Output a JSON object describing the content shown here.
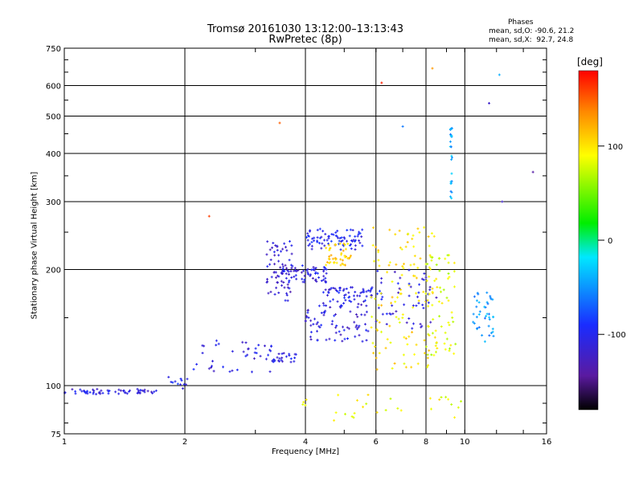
{
  "chart_data": {
    "type": "scatter",
    "title": "Tromsø 20161030 13:12:00–13:13:43",
    "subtitle": "RwPretec (8p)",
    "phase_header": {
      "title": "Phases",
      "line_o": "mean, sd,O: -90.6, 21.2",
      "line_x": "mean, sd,X:  92.7, 24.8"
    },
    "xlabel": "Frequency [MHz]",
    "ylabel": "Stationary phase Virtual Height [km]",
    "x_scale": "log",
    "y_scale": "log",
    "xlim": [
      1,
      16
    ],
    "ylim": [
      75,
      750
    ],
    "x_ticks": [
      1,
      2,
      4,
      6,
      8,
      10,
      16
    ],
    "y_ticks": [
      75,
      100,
      200,
      300,
      400,
      500,
      600,
      750
    ],
    "grid": true,
    "colorbar": {
      "label": "[deg]",
      "ticks": [
        100,
        0,
        -100
      ],
      "range": [
        -180,
        180
      ],
      "colormap": "rainbow (black-purple-blue-cyan-green-yellow-orange-red)"
    },
    "trace_groups": [
      {
        "x": [
          1.0,
          1.7
        ],
        "y": [
          95,
          98
        ],
        "phase": -110,
        "n": 60
      },
      {
        "x": [
          1.75,
          2.05
        ],
        "y": [
          98,
          108
        ],
        "phase": -100,
        "n": 12
      },
      {
        "x": [
          2.1,
          3.3
        ],
        "y": [
          108,
          132
        ],
        "phase": -110,
        "n": 40
      },
      {
        "x": [
          3.3,
          3.8
        ],
        "y": [
          115,
          122
        ],
        "phase": -105,
        "n": 25
      },
      {
        "x": [
          3.2,
          3.7
        ],
        "y": [
          165,
          240
        ],
        "phase": -115,
        "n": 60
      },
      {
        "x": [
          3.4,
          4.6
        ],
        "y": [
          185,
          205
        ],
        "phase": -110,
        "n": 70
      },
      {
        "x": [
          4.0,
          5.6
        ],
        "y": [
          225,
          255
        ],
        "phase": -100,
        "n": 80
      },
      {
        "x": [
          4.0,
          5.8
        ],
        "y": [
          130,
          165
        ],
        "phase": -110,
        "n": 80
      },
      {
        "x": [
          4.4,
          6.2
        ],
        "y": [
          165,
          180
        ],
        "phase": -105,
        "n": 60
      },
      {
        "x": [
          4.5,
          5.2
        ],
        "y": [
          205,
          235
        ],
        "phase": 110,
        "n": 45
      },
      {
        "x": [
          5.8,
          8.5
        ],
        "y": [
          110,
          260
        ],
        "phase": 100,
        "n": 120
      },
      {
        "x": [
          6.0,
          8.5
        ],
        "y": [
          140,
          200
        ],
        "phase": -110,
        "n": 50
      },
      {
        "x": [
          8.0,
          9.5
        ],
        "y": [
          120,
          220
        ],
        "phase": 80,
        "n": 60
      },
      {
        "x": [
          9.2,
          9.3
        ],
        "y": [
          300,
          470
        ],
        "phase": -45,
        "n": 25
      },
      {
        "x": [
          10.4,
          11.8
        ],
        "y": [
          130,
          175
        ],
        "phase": -50,
        "n": 40
      },
      {
        "x": [
          3.6,
          10.0
        ],
        "y": [
          80,
          95
        ],
        "phase": 90,
        "n": 30
      }
    ],
    "isolated_points": [
      {
        "x": 14.8,
        "y": 358,
        "phase": -140
      },
      {
        "x": 11.5,
        "y": 540,
        "phase": -120
      },
      {
        "x": 12.2,
        "y": 640,
        "phase": -40
      },
      {
        "x": 12.4,
        "y": 300,
        "phase": -120
      },
      {
        "x": 8.3,
        "y": 665,
        "phase": 130
      },
      {
        "x": 7.0,
        "y": 470,
        "phase": -60
      },
      {
        "x": 6.2,
        "y": 610,
        "phase": 170
      },
      {
        "x": 3.45,
        "y": 480,
        "phase": 150
      },
      {
        "x": 2.3,
        "y": 275,
        "phase": 160
      }
    ]
  }
}
